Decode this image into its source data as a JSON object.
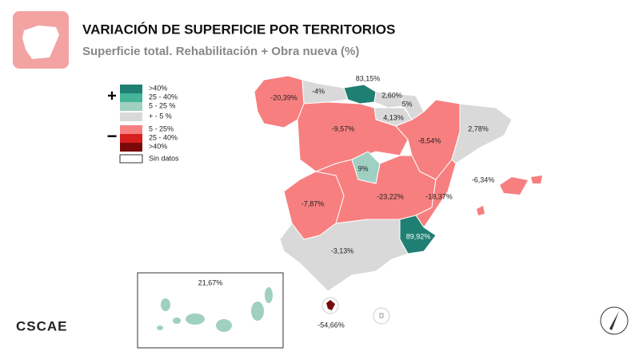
{
  "header": {
    "title": "VARIACIÓN DE SUPERFICIE POR TERRITORIOS",
    "subtitle": "Superficie total. Rehabilitación + Obra nueva (%)"
  },
  "legend": {
    "plus": "+",
    "minus": "−",
    "items": [
      ">40%",
      "25 - 40%",
      "5 - 25 %",
      "+ - 5 %",
      "5 - 25%",
      "25 - 40%",
      ">40%",
      "Sin datos"
    ]
  },
  "regions": [
    {
      "label": "-20,39%"
    },
    {
      "label": "-4%"
    },
    {
      "label": "83,15%"
    },
    {
      "label": "2,60%"
    },
    {
      "label": "5%"
    },
    {
      "label": "4,13%"
    },
    {
      "label": "-9,57%"
    },
    {
      "label": "-8,54%"
    },
    {
      "label": "2,78%"
    },
    {
      "label": "9%"
    },
    {
      "label": "-6,34%"
    },
    {
      "label": "-7,87%"
    },
    {
      "label": "-23,22%"
    },
    {
      "label": "-18,37%"
    },
    {
      "label": "89,92%"
    },
    {
      "label": "-3,13%"
    },
    {
      "label": "21,67%"
    },
    {
      "label": "-54,66%"
    }
  ],
  "footer": {
    "logo": "CSCAE"
  }
}
